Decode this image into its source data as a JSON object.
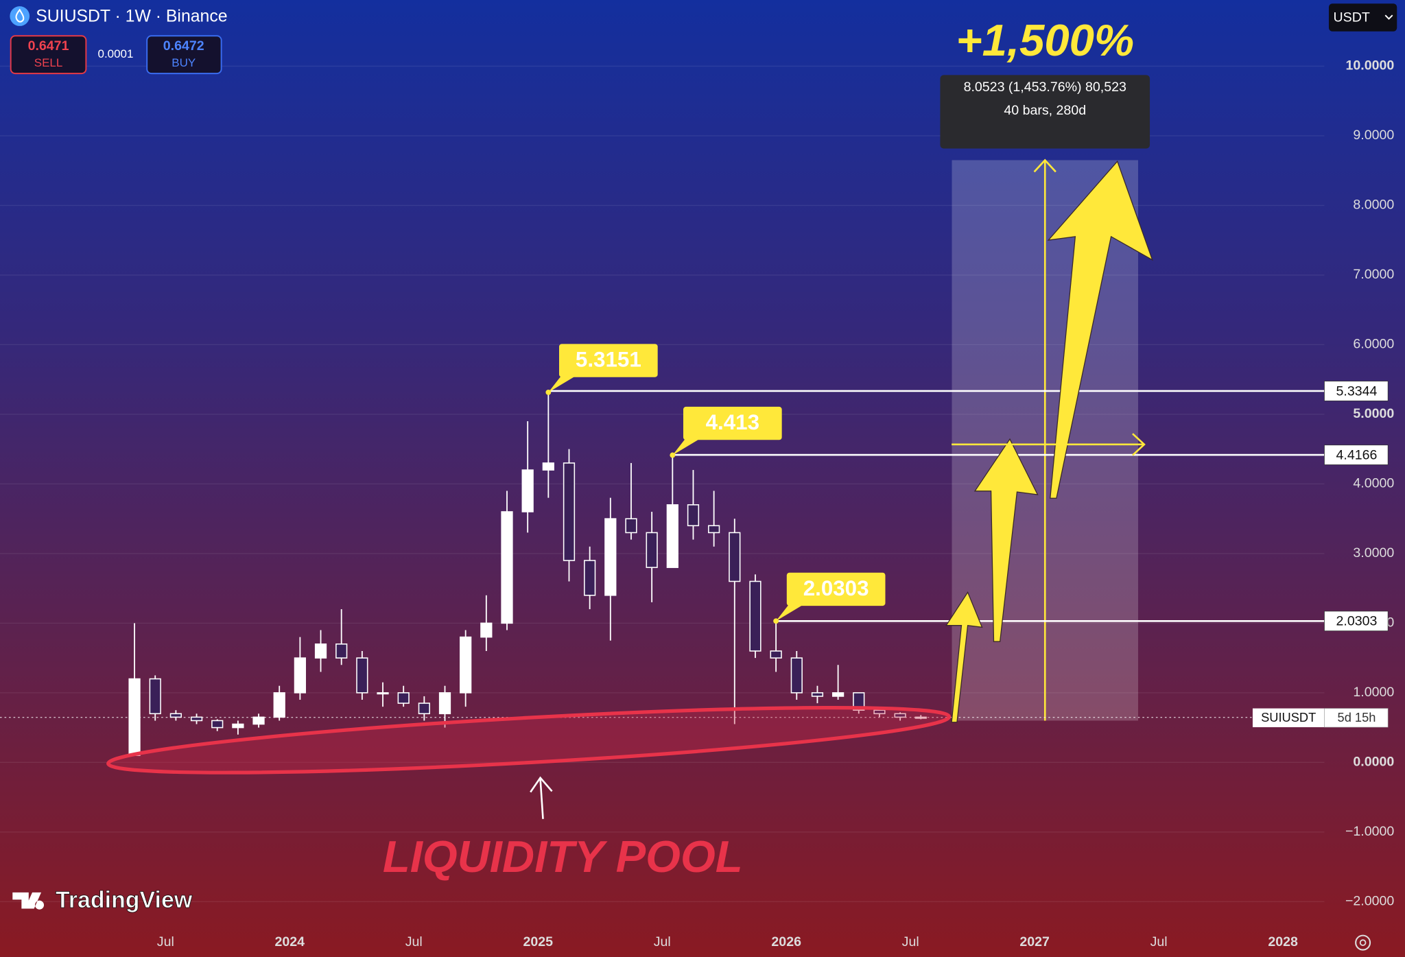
{
  "header": {
    "symbol": "SUIUSDT · 1W · Binance",
    "sell": {
      "price": "0.6471",
      "label": "SELL"
    },
    "spread": "0.0001",
    "buy": {
      "price": "0.6472",
      "label": "BUY"
    },
    "currency": "USDT"
  },
  "brand": "TradingView",
  "chart_data": {
    "type": "candlestick",
    "x": [
      "2023-05",
      "2023-06",
      "2023-07",
      "2023-08",
      "2023-09",
      "2023-10",
      "2023-11",
      "2023-12",
      "2024-01",
      "2024-02",
      "2024-03",
      "2024-04",
      "2024-05",
      "2024-06",
      "2024-07",
      "2024-08",
      "2024-09",
      "2024-10",
      "2024-11",
      "2024-12",
      "2025-01",
      "2025-02",
      "2025-03",
      "2025-04",
      "2025-05",
      "2025-06",
      "2025-07",
      "2025-08",
      "2025-09",
      "2025-10",
      "2025-11",
      "2025-12",
      "2026-01",
      "2026-02",
      "2026-03",
      "2026-04",
      "2026-05",
      "2026-06",
      "2026-07"
    ],
    "open": [
      0.1,
      1.2,
      0.7,
      0.65,
      0.6,
      0.5,
      0.55,
      0.65,
      1.0,
      1.5,
      1.7,
      1.5,
      1.0,
      1.0,
      0.85,
      0.7,
      1.0,
      1.8,
      2.0,
      3.6,
      4.2,
      4.3,
      2.9,
      2.4,
      3.5,
      3.3,
      2.8,
      3.7,
      3.4,
      3.3,
      2.6,
      1.6,
      1.5,
      1.0,
      0.95,
      1.0,
      0.75,
      0.7,
      0.65
    ],
    "high": [
      2.0,
      1.25,
      0.75,
      0.7,
      0.62,
      0.6,
      0.7,
      1.1,
      1.8,
      1.9,
      2.2,
      1.6,
      1.15,
      1.1,
      0.95,
      1.1,
      1.9,
      2.4,
      3.9,
      4.9,
      5.3151,
      4.5,
      3.1,
      3.8,
      4.3,
      3.6,
      4.413,
      4.2,
      3.9,
      3.5,
      2.7,
      2.0303,
      1.6,
      1.1,
      1.4,
      1.0,
      0.8,
      0.72,
      0.68
    ],
    "low": [
      0.1,
      0.6,
      0.6,
      0.55,
      0.45,
      0.4,
      0.5,
      0.6,
      0.9,
      1.3,
      1.4,
      0.9,
      0.8,
      0.8,
      0.6,
      0.5,
      0.8,
      1.6,
      1.9,
      3.3,
      3.8,
      2.6,
      2.2,
      1.75,
      3.2,
      2.3,
      2.8,
      3.2,
      3.1,
      0.55,
      1.5,
      1.3,
      0.9,
      0.85,
      0.9,
      0.7,
      0.65,
      0.6,
      0.62
    ],
    "close": [
      1.2,
      0.7,
      0.65,
      0.6,
      0.5,
      0.55,
      0.65,
      1.0,
      1.5,
      1.7,
      1.5,
      1.0,
      1.0,
      0.85,
      0.7,
      1.0,
      1.8,
      2.0,
      3.6,
      4.2,
      4.3,
      2.9,
      2.4,
      3.5,
      3.3,
      2.8,
      3.7,
      3.4,
      3.3,
      2.6,
      1.6,
      1.5,
      1.0,
      0.95,
      1.0,
      0.75,
      0.7,
      0.65,
      0.6471
    ],
    "up_color": "#ffffff",
    "down_color": "#ffffff",
    "xlim": [
      "2022-11",
      "2028-03"
    ],
    "xticks": [
      {
        "value": "2023-07",
        "label": "Jul"
      },
      {
        "value": "2024-01",
        "label": "2024"
      },
      {
        "value": "2024-07",
        "label": "Jul"
      },
      {
        "value": "2025-01",
        "label": "2025"
      },
      {
        "value": "2025-07",
        "label": "Jul"
      },
      {
        "value": "2026-01",
        "label": "2026"
      },
      {
        "value": "2026-07",
        "label": "Jul"
      },
      {
        "value": "2027-01",
        "label": "2027"
      },
      {
        "value": "2027-07",
        "label": "Jul"
      },
      {
        "value": "2028-01",
        "label": "2028"
      }
    ],
    "ylim": [
      -2.37,
      10.95
    ],
    "yticks": [
      {
        "value": -2,
        "label": "−2.0000"
      },
      {
        "value": -1,
        "label": "−1.0000"
      },
      {
        "value": 0,
        "label": "0.0000"
      },
      {
        "value": 1,
        "label": "1.0000"
      },
      {
        "value": 2,
        "label": "2.0000"
      },
      {
        "value": 3,
        "label": "3.0000"
      },
      {
        "value": 4,
        "label": "4.0000"
      },
      {
        "value": 5,
        "label": "5.0000"
      },
      {
        "value": 6,
        "label": "6.0000"
      },
      {
        "value": 7,
        "label": "7.0000"
      },
      {
        "value": 8,
        "label": "8.0000"
      },
      {
        "value": 9,
        "label": "9.0000"
      },
      {
        "value": 10,
        "label": "10.0000"
      }
    ],
    "grid": true,
    "callouts": [
      {
        "x": "2025-01",
        "value": 5.3151
      },
      {
        "x": "2025-07",
        "value": 4.413
      },
      {
        "x": "2025-12",
        "value": 2.0303
      }
    ],
    "levels": [
      {
        "x": "2025-01",
        "value": 5.3344
      },
      {
        "x": "2025-07",
        "value": 4.4166
      },
      {
        "x": "2025-12",
        "value": 2.0303
      }
    ],
    "price_tag": {
      "name": "SUIUSDT",
      "countdown": "5d 15h"
    },
    "measure": {
      "x": [
        "2026-09",
        "2027-06"
      ],
      "low": 0.6,
      "high": 8.65,
      "text": "8.0523 (1,453.76%) 80,523",
      "text2": "40 bars, 280d"
    },
    "headline": "+1,500%",
    "note": "LIQUIDITY POOL"
  }
}
